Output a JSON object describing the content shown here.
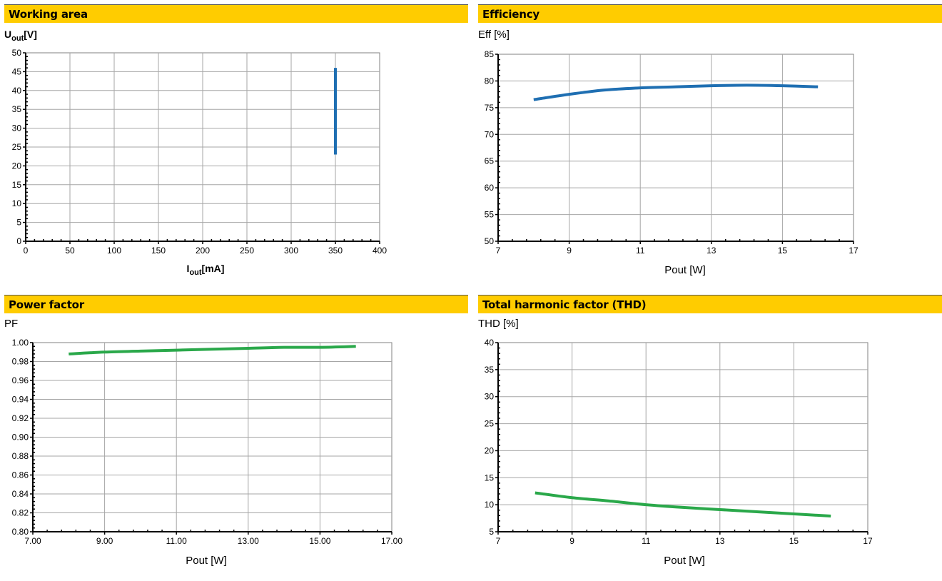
{
  "chart_data": [
    {
      "id": "working",
      "type": "line",
      "title": "Working area",
      "ylabel_main": "U",
      "ylabel_sub": "out",
      "ylabel_unit": "[V]",
      "xlabel_main": "I",
      "xlabel_sub": "out",
      "xlabel_unit": "[mA]",
      "xlim": [
        0,
        400
      ],
      "ylim": [
        0,
        50
      ],
      "xticks": [
        0,
        50,
        100,
        150,
        200,
        250,
        300,
        350,
        400
      ],
      "yticks": [
        0,
        5,
        10,
        15,
        20,
        25,
        30,
        35,
        40,
        45,
        50
      ],
      "tick_decimals": 0,
      "grid": true,
      "series": [
        {
          "color": "#1f6fb2",
          "x": [
            350,
            350
          ],
          "y": [
            23,
            46
          ]
        }
      ]
    },
    {
      "id": "efficiency",
      "type": "line",
      "title": "Efficiency",
      "ylabel": "Eff [%]",
      "xlabel": "Pout [W]",
      "xlim": [
        7,
        17
      ],
      "ylim": [
        50,
        85
      ],
      "xticks": [
        7,
        9,
        11,
        13,
        15,
        17
      ],
      "yticks": [
        50,
        55,
        60,
        65,
        70,
        75,
        80,
        85
      ],
      "tick_decimals": 0,
      "grid": true,
      "series": [
        {
          "color": "#1f6fb2",
          "x": [
            8,
            9,
            10,
            11,
            12,
            13,
            14,
            15,
            16
          ],
          "y": [
            76.5,
            77.5,
            78.3,
            78.7,
            78.9,
            79.1,
            79.2,
            79.1,
            78.9
          ]
        }
      ]
    },
    {
      "id": "powerfactor",
      "type": "line",
      "title": "Power factor",
      "ylabel": "PF",
      "xlabel": "Pout [W]",
      "xlim": [
        7,
        17
      ],
      "ylim": [
        0.8,
        1.0
      ],
      "xticks": [
        7,
        9,
        11,
        13,
        15,
        17
      ],
      "yticks": [
        0.8,
        0.82,
        0.84,
        0.86,
        0.88,
        0.9,
        0.92,
        0.94,
        0.96,
        0.98,
        1.0
      ],
      "tick_decimals": 2,
      "grid": true,
      "series": [
        {
          "color": "#2aa84a",
          "x": [
            8,
            9,
            10,
            11,
            12,
            13,
            14,
            15,
            16
          ],
          "y": [
            0.988,
            0.99,
            0.991,
            0.992,
            0.993,
            0.994,
            0.995,
            0.995,
            0.996
          ]
        }
      ]
    },
    {
      "id": "thd",
      "type": "line",
      "title": "Total harmonic factor (THD)",
      "ylabel": "THD [%]",
      "xlabel": "Pout [W]",
      "xlim": [
        7,
        17
      ],
      "ylim": [
        5,
        40
      ],
      "xticks": [
        7,
        9,
        11,
        13,
        15,
        17
      ],
      "yticks": [
        5,
        10,
        15,
        20,
        25,
        30,
        35,
        40
      ],
      "tick_decimals": 0,
      "grid": true,
      "series": [
        {
          "color": "#2aa84a",
          "x": [
            8,
            9,
            10,
            11,
            12,
            13,
            14,
            15,
            16
          ],
          "y": [
            12.2,
            11.3,
            10.7,
            10.0,
            9.5,
            9.1,
            8.7,
            8.3,
            7.9
          ]
        }
      ]
    }
  ]
}
